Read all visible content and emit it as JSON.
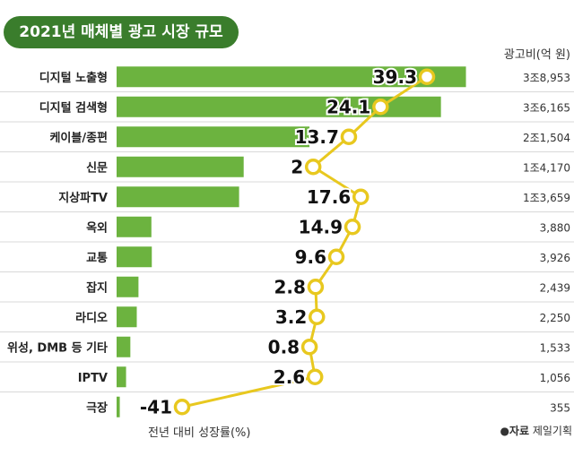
{
  "header": {
    "title": "2021년 매체별 광고 시장 규모",
    "unit_label": "광고비(억 원)",
    "xlabel": "전년 대비 성장률(%)",
    "source_key": "●자료",
    "source_value": "제일기획"
  },
  "colors": {
    "title_bg": "#3a7d2c",
    "bar": "#6cb33f",
    "line": "#e8c81f",
    "marker_fill": "#ffffff",
    "marker_stroke": "#e8c81f"
  },
  "chart_data": {
    "type": "bar",
    "title": "2021년 매체별 광고 시장 규모",
    "xlabel": "전년 대비 성장률(%)",
    "ylabel": "",
    "categories": [
      "디지털 노출형",
      "디지털 검색형",
      "케이블/종편",
      "신문",
      "지상파TV",
      "옥외",
      "교통",
      "잡지",
      "라디오",
      "위성, DMB 등 기타",
      "IPTV",
      "극장"
    ],
    "series": [
      {
        "name": "광고비(억 원)",
        "values": [
          38953,
          36165,
          21504,
          14170,
          13659,
          3880,
          3926,
          2439,
          2250,
          1533,
          1056,
          355
        ],
        "labels": [
          "3조8,953",
          "3조6,165",
          "2조1,504",
          "1조4,170",
          "1조3,659",
          "3,880",
          "3,926",
          "2,439",
          "2,250",
          "1,533",
          "1,056",
          "355"
        ]
      },
      {
        "name": "전년 대비 성장률(%)",
        "type": "line",
        "values": [
          39.3,
          24.1,
          13.7,
          2,
          17.6,
          14.9,
          9.6,
          2.8,
          3.2,
          0.8,
          2.6,
          -41
        ],
        "labels": [
          "39.3",
          "24.1",
          "13.7",
          "2",
          "17.6",
          "14.9",
          "9.6",
          "2.8",
          "3.2",
          "0.8",
          "2.6",
          "-41"
        ]
      }
    ],
    "xlim": [
      0,
      40000
    ],
    "growth_lim": [
      -41,
      39.3
    ],
    "grid": false
  }
}
